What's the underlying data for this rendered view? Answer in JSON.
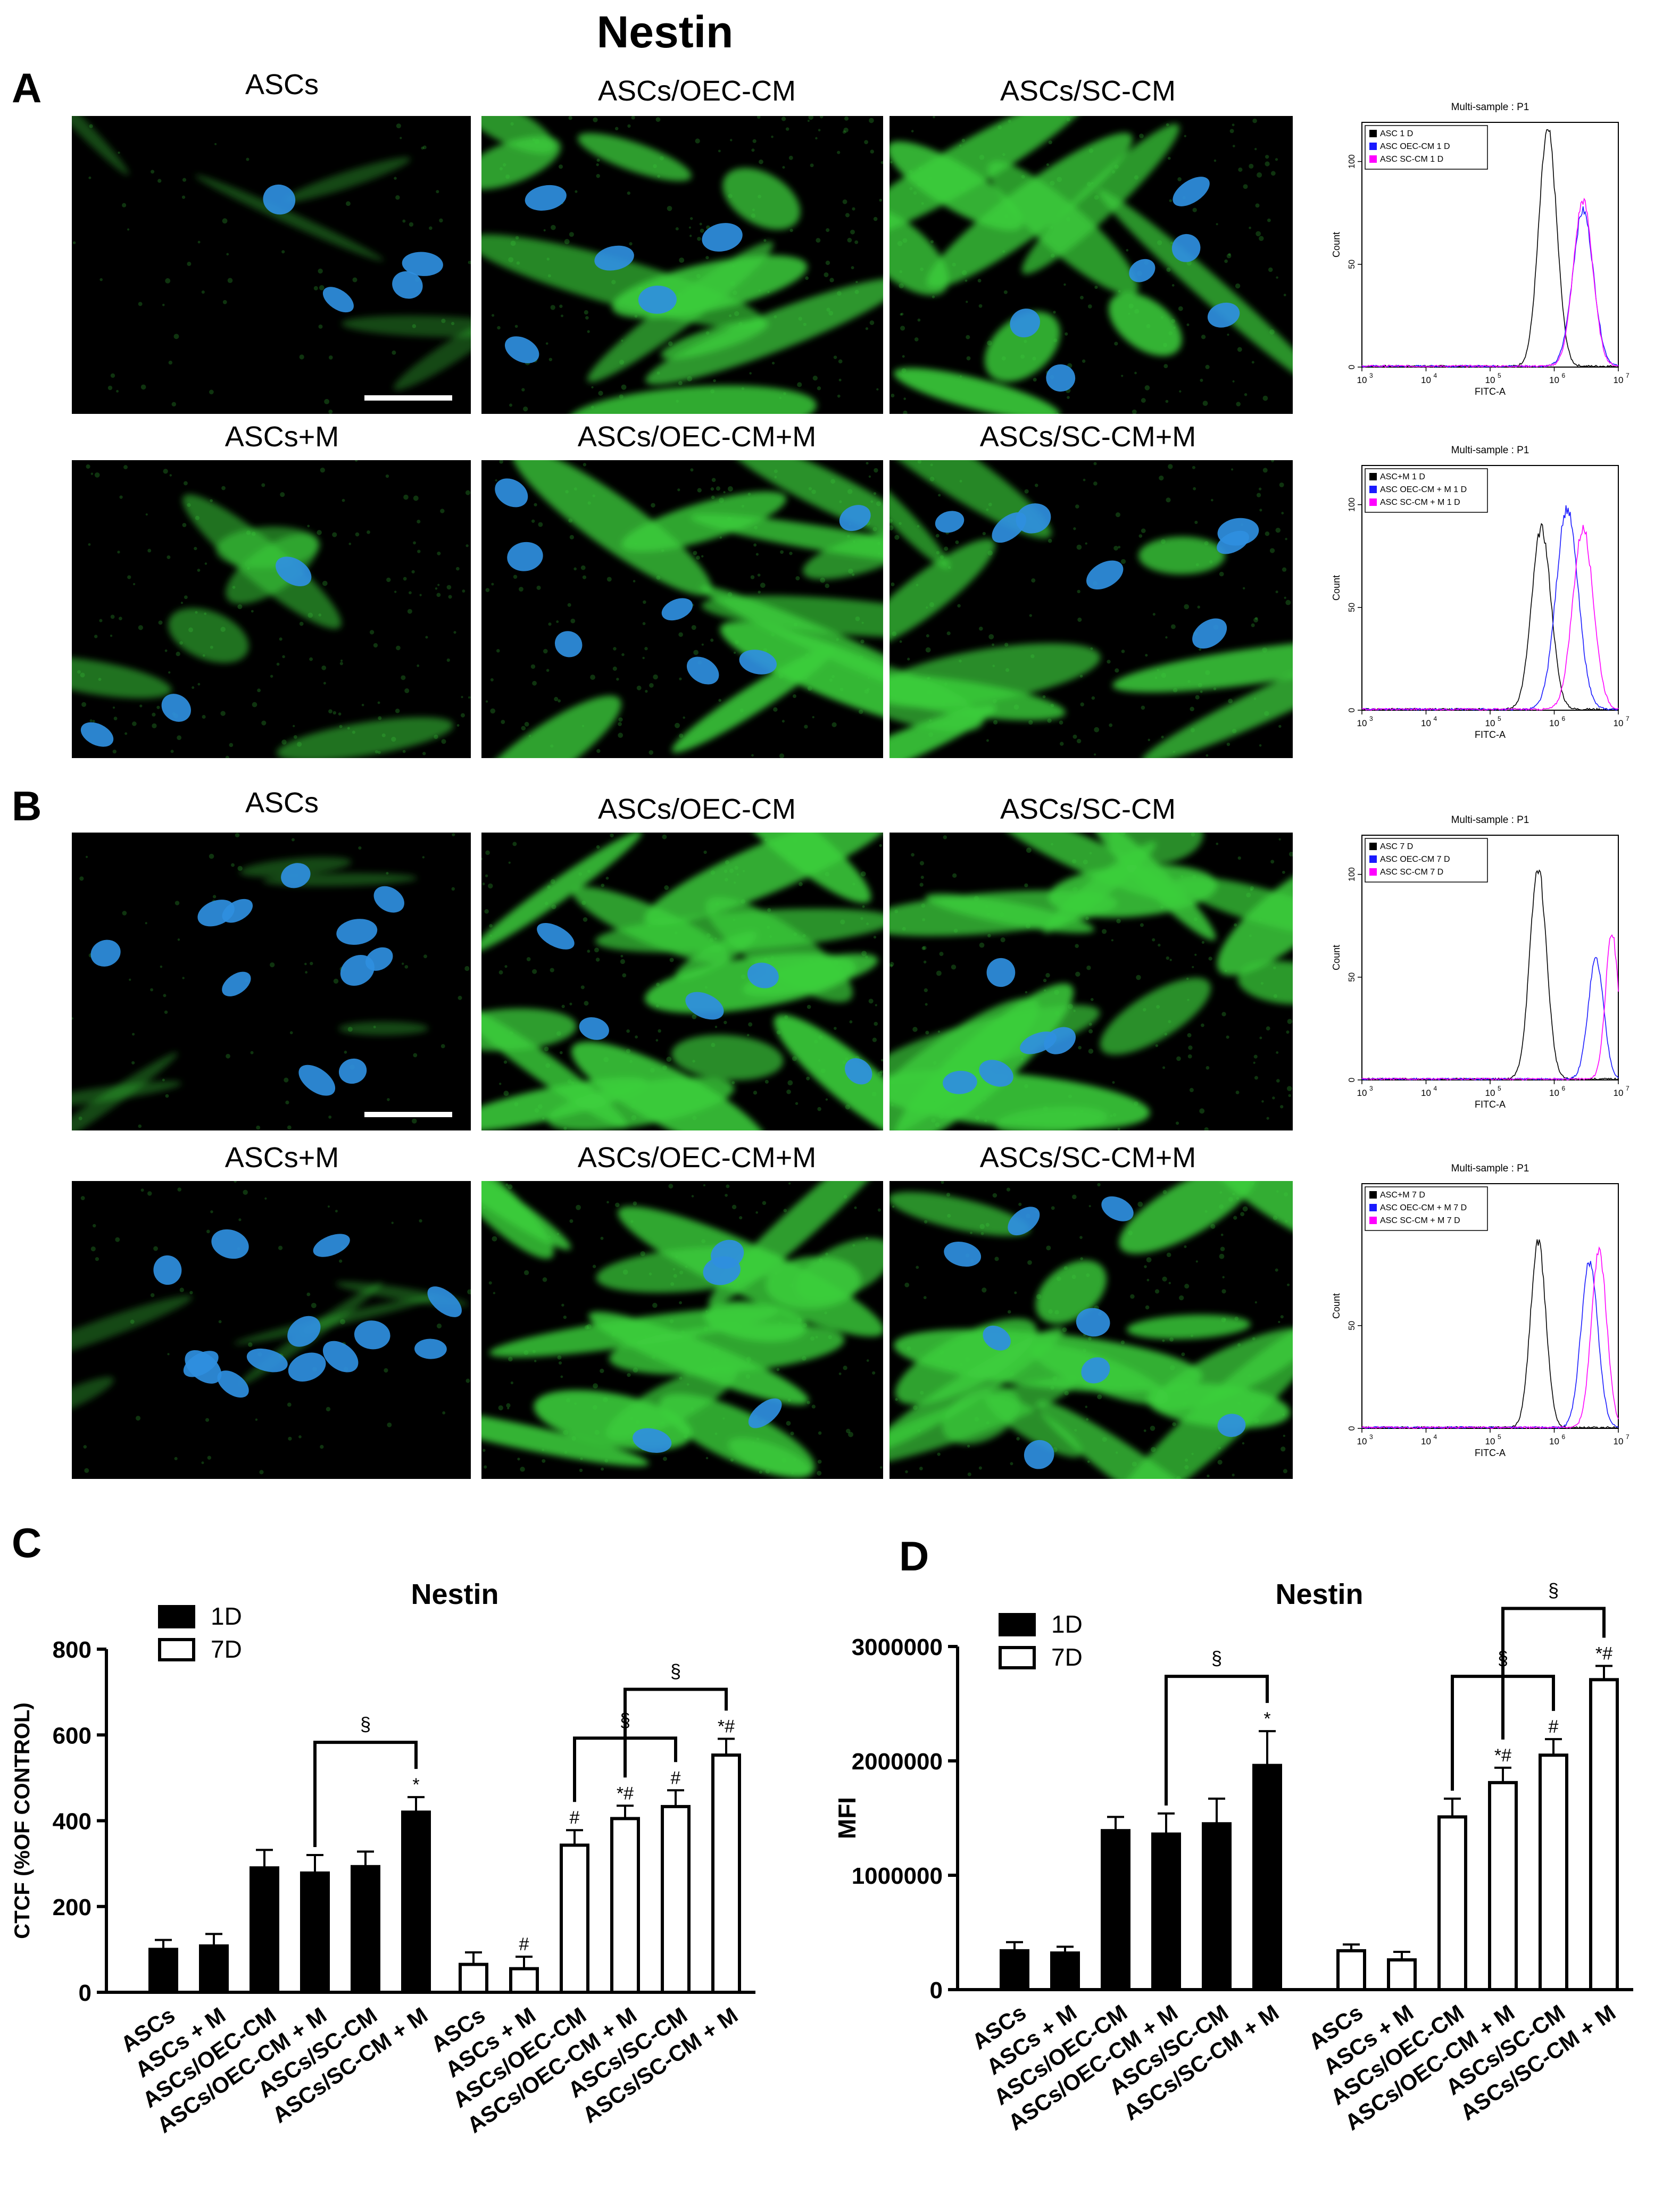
{
  "figure": {
    "title": "Nestin",
    "panels": [
      "A",
      "B",
      "C",
      "D"
    ]
  },
  "colors": {
    "nucleus": "#2f8fe0",
    "cytoplasm": "#3ccf3c",
    "scale_bar": "#ffffff",
    "series_black": "#000000",
    "series_blue": "#1a1aff",
    "series_magenta": "#ff00ff"
  },
  "panelA": {
    "row1_labels": [
      "ASCs",
      "ASCs/OEC-CM",
      "ASCs/SC-CM"
    ],
    "row2_labels": [
      "ASCs+M",
      "ASCs/OEC-CM+M",
      "ASCs/SC-CM+M"
    ],
    "flow_row1": {
      "header": "Multi-sample : P1",
      "legend": [
        "ASC 1 D",
        "ASC OEC-CM 1 D",
        "ASC SC-CM 1 D"
      ],
      "ylabel": "Count",
      "xlabel": "FITC-A",
      "yticks": [
        "0",
        "50",
        "100"
      ],
      "xticks": [
        "10",
        "10",
        "10",
        "10",
        "10"
      ],
      "xexp": [
        "3",
        "4",
        "5",
        "6",
        "7"
      ]
    },
    "flow_row2": {
      "header": "Multi-sample : P1",
      "legend": [
        "ASC+M 1 D",
        "ASC OEC-CM + M 1 D",
        "ASC SC-CM + M 1 D"
      ],
      "ylabel": "Count",
      "xlabel": "FITC-A",
      "yticks": [
        "0",
        "50",
        "100"
      ],
      "xticks": [
        "10",
        "10",
        "10",
        "10",
        "10"
      ],
      "xexp": [
        "3",
        "4",
        "5",
        "6",
        "7"
      ]
    }
  },
  "panelB": {
    "row1_labels": [
      "ASCs",
      "ASCs/OEC-CM",
      "ASCs/SC-CM"
    ],
    "row2_labels": [
      "ASCs+M",
      "ASCs/OEC-CM+M",
      "ASCs/SC-CM+M"
    ],
    "flow_row1": {
      "header": "Multi-sample : P1",
      "legend": [
        "ASC 7 D",
        "ASC OEC-CM 7 D",
        "ASC SC-CM 7 D"
      ],
      "ylabel": "Count",
      "xlabel": "FITC-A",
      "yticks": [
        "0",
        "50",
        "100"
      ],
      "xticks": [
        "10",
        "10",
        "10",
        "10",
        "10"
      ],
      "xexp": [
        "3",
        "4",
        "5",
        "6",
        "7"
      ]
    },
    "flow_row2": {
      "header": "Multi-sample : P1",
      "legend": [
        "ASC+M 7 D",
        "ASC OEC-CM + M 7 D",
        "ASC SC-CM + M 7 D"
      ],
      "ylabel": "Count",
      "xlabel": "FITC-A",
      "yticks": [
        "0",
        "50"
      ],
      "xticks": [
        "10",
        "10",
        "10",
        "10",
        "10"
      ],
      "xexp": [
        "3",
        "4",
        "5",
        "6",
        "7"
      ]
    }
  },
  "chart_data": [
    {
      "type": "bar",
      "panel": "C",
      "title": "Nestin",
      "ylabel": "CTCF (%OF CONTROL)",
      "ylim": [
        0,
        800
      ],
      "yticks": [
        "0",
        "200",
        "400",
        "600",
        "800"
      ],
      "legend": [
        "1D",
        "7D"
      ],
      "categories": [
        "ASCs",
        "ASCs + M",
        "ASCs/OEC-CM",
        "ASCs/OEC-CM + M",
        "ASCs/SC-CM",
        "ASCs/SC-CM + M"
      ],
      "series": [
        {
          "name": "1D",
          "values": [
            100,
            108,
            290,
            278,
            293,
            420
          ],
          "errors": [
            22,
            28,
            42,
            42,
            35,
            35
          ],
          "marks": [
            "",
            "",
            "",
            "",
            "",
            "*"
          ]
        },
        {
          "name": "7D",
          "values": [
            65,
            55,
            343,
            405,
            433,
            553
          ],
          "errors": [
            28,
            28,
            35,
            30,
            38,
            38
          ],
          "marks": [
            "",
            "#",
            "#",
            "*#",
            "#",
            "*#"
          ]
        }
      ],
      "brackets": [
        "§",
        "§",
        "§"
      ]
    },
    {
      "type": "bar",
      "panel": "D",
      "title": "Nestin",
      "ylabel": "MFI",
      "ylim": [
        0,
        3000000
      ],
      "yticks": [
        "0",
        "1000000",
        "2000000",
        "3000000"
      ],
      "legend": [
        "1D",
        "7D"
      ],
      "categories": [
        "ASCs",
        "ASCs + M",
        "ASCs/OEC-CM",
        "ASCs/OEC-CM + M",
        "ASCs/SC-CM",
        "ASCs/SC-CM + M"
      ],
      "series": [
        {
          "name": "1D",
          "values": [
            340000,
            320000,
            1390000,
            1360000,
            1450000,
            1960000
          ],
          "errors": [
            75000,
            55000,
            120000,
            180000,
            220000,
            300000
          ],
          "marks": [
            "",
            "",
            "",
            "",
            "",
            "*"
          ]
        },
        {
          "name": "7D",
          "values": [
            340000,
            260000,
            1510000,
            1810000,
            2050000,
            2710000
          ],
          "errors": [
            55000,
            70000,
            160000,
            130000,
            140000,
            120000
          ],
          "marks": [
            "",
            "",
            "",
            "*#",
            "#",
            "*#"
          ]
        }
      ],
      "brackets": [
        "§",
        "§",
        "§"
      ]
    }
  ]
}
